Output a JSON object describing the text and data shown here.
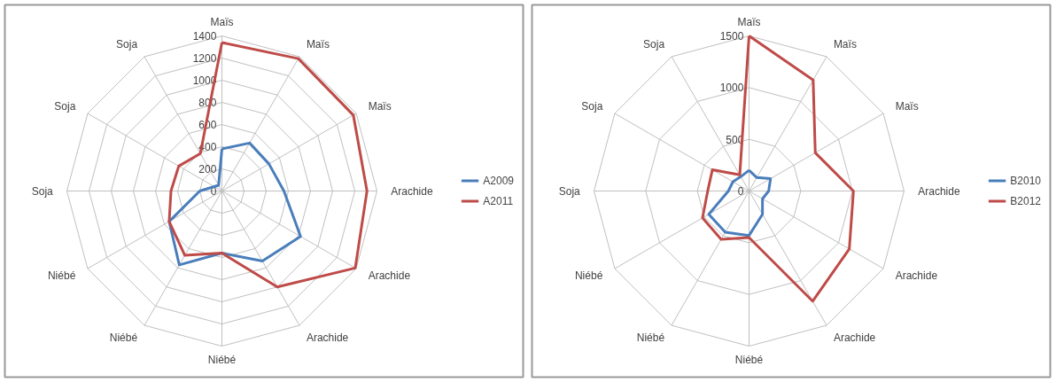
{
  "chart_data": [
    {
      "type": "radar",
      "categories": [
        "Maïs",
        "Maïs",
        "Maïs",
        "Arachide",
        "Arachide",
        "Arachide",
        "Niébé",
        "Niébé",
        "Niébé",
        "Soja",
        "Soja",
        "Soja"
      ],
      "ylim": [
        0,
        1400
      ],
      "yticks": [
        0,
        200,
        400,
        600,
        800,
        1000,
        1200,
        1400
      ],
      "grid": true,
      "legend": "right",
      "series": [
        {
          "name": "A2009",
          "color": "#4a7ebb",
          "values": [
            380,
            500,
            490,
            560,
            820,
            730,
            560,
            770,
            550,
            200,
            80,
            60
          ]
        },
        {
          "name": "A2011",
          "color": "#be4b48",
          "values": [
            1340,
            1380,
            1370,
            1310,
            1390,
            1000,
            560,
            670,
            550,
            460,
            450,
            390
          ]
        }
      ]
    },
    {
      "type": "radar",
      "categories": [
        "Maïs",
        "Maïs",
        "Maïs",
        "Arachide",
        "Arachide",
        "Arachide",
        "Niébé",
        "Niébé",
        "Niébé",
        "Soja",
        "Soja",
        "Soja"
      ],
      "ylim": [
        0,
        1500
      ],
      "yticks": [
        0,
        500,
        1000,
        1500
      ],
      "grid": true,
      "legend": "right",
      "series": [
        {
          "name": "B2010",
          "color": "#4a7ebb",
          "values": [
            200,
            150,
            240,
            190,
            150,
            260,
            430,
            460,
            450,
            200,
            180,
            160
          ]
        },
        {
          "name": "B2012",
          "color": "#be4b48",
          "values": [
            1500,
            1240,
            740,
            1010,
            1120,
            1230,
            450,
            540,
            520,
            400,
            410,
            180
          ]
        }
      ]
    }
  ]
}
